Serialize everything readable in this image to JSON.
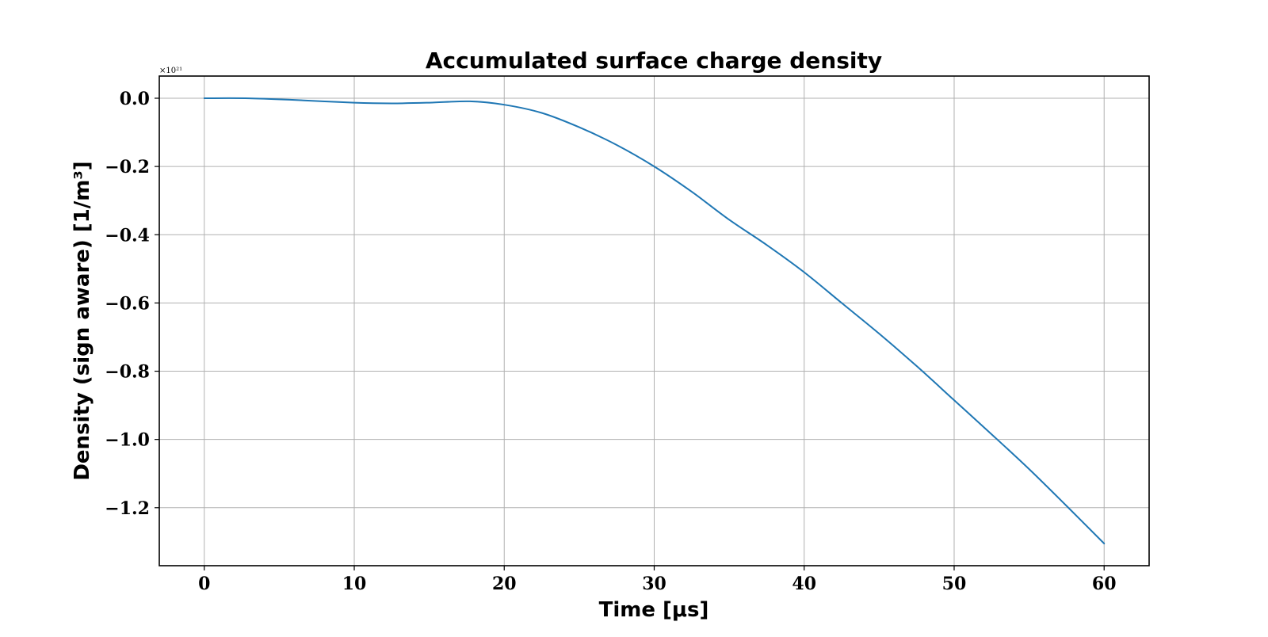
{
  "chart_data": {
    "type": "line",
    "title": "Accumulated surface charge density",
    "xlabel": "Time [μs]",
    "ylabel": "Density (sign aware) [1/m³]",
    "y_multiplier_label": "×10²¹",
    "xlim": [
      -3,
      63
    ],
    "ylim": [
      -1.37,
      0.065
    ],
    "x_ticks": [
      0,
      10,
      20,
      30,
      40,
      50,
      60
    ],
    "x_tick_labels": [
      "0",
      "10",
      "20",
      "30",
      "40",
      "50",
      "60"
    ],
    "y_ticks": [
      0.0,
      -0.2,
      -0.4,
      -0.6,
      -0.8,
      -1.0,
      -1.2
    ],
    "y_tick_labels": [
      "0.0",
      "−0.2",
      "−0.4",
      "−0.6",
      "−0.8",
      "−1.0",
      "−1.2"
    ],
    "grid": true,
    "legend": "none",
    "series": [
      {
        "color": "#1f77b4",
        "x": [
          0,
          3,
          6,
          10,
          12.5,
          15,
          17.7,
          20,
          22.5,
          25,
          27.5,
          30,
          32.5,
          35,
          37.5,
          40,
          42.5,
          45,
          47.5,
          50,
          52.5,
          55,
          57.5,
          60
        ],
        "y": [
          0.0,
          -0.0002,
          -0.005,
          -0.013,
          -0.015,
          -0.013,
          -0.009,
          -0.019,
          -0.043,
          -0.085,
          -0.137,
          -0.2,
          -0.274,
          -0.356,
          -0.43,
          -0.51,
          -0.6,
          -0.69,
          -0.785,
          -0.885,
          -0.985,
          -1.087,
          -1.195,
          -1.305
        ]
      }
    ]
  }
}
